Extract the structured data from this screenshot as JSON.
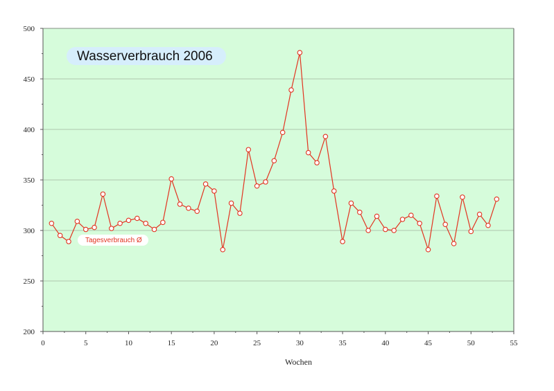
{
  "chart_data": {
    "type": "line",
    "title": "Wasserverbrauch 2006",
    "xlabel": "Wochen",
    "ylabel": "",
    "xlim": [
      0,
      55
    ],
    "ylim": [
      200,
      500
    ],
    "x_ticks": [
      0,
      5,
      10,
      15,
      20,
      25,
      30,
      35,
      40,
      45,
      50,
      55
    ],
    "y_ticks": [
      200,
      250,
      300,
      350,
      400,
      450,
      500
    ],
    "grid": "horizontal",
    "legend_position": "lower-left",
    "series": [
      {
        "name": "Tagesverbrauch Ø",
        "color": "#e2321f",
        "x": [
          1,
          2,
          3,
          4,
          5,
          6,
          7,
          8,
          9,
          10,
          11,
          12,
          13,
          14,
          15,
          16,
          17,
          18,
          19,
          20,
          21,
          22,
          23,
          24,
          25,
          26,
          27,
          28,
          29,
          30,
          31,
          32,
          33,
          34,
          35,
          36,
          37,
          38,
          39,
          40,
          41,
          42,
          43,
          44,
          45,
          46,
          47,
          48,
          49,
          50,
          51,
          52,
          53
        ],
        "values": [
          307,
          295,
          289,
          309,
          301,
          303,
          336,
          302,
          307,
          310,
          312,
          307,
          301,
          308,
          351,
          326,
          322,
          319,
          346,
          339,
          281,
          327,
          317,
          380,
          344,
          348,
          369,
          397,
          439,
          476,
          377,
          367,
          393,
          339,
          289,
          327,
          318,
          300,
          314,
          301,
          300,
          311,
          315,
          307,
          281,
          334,
          306,
          287,
          333,
          299,
          316,
          305,
          331
        ]
      }
    ]
  },
  "colors": {
    "plot_background": "#d6fcdb",
    "gridline": "#a0b49c",
    "axis": "#555555",
    "title_box": "#d6eefc",
    "legend_box": "#ffffff"
  }
}
